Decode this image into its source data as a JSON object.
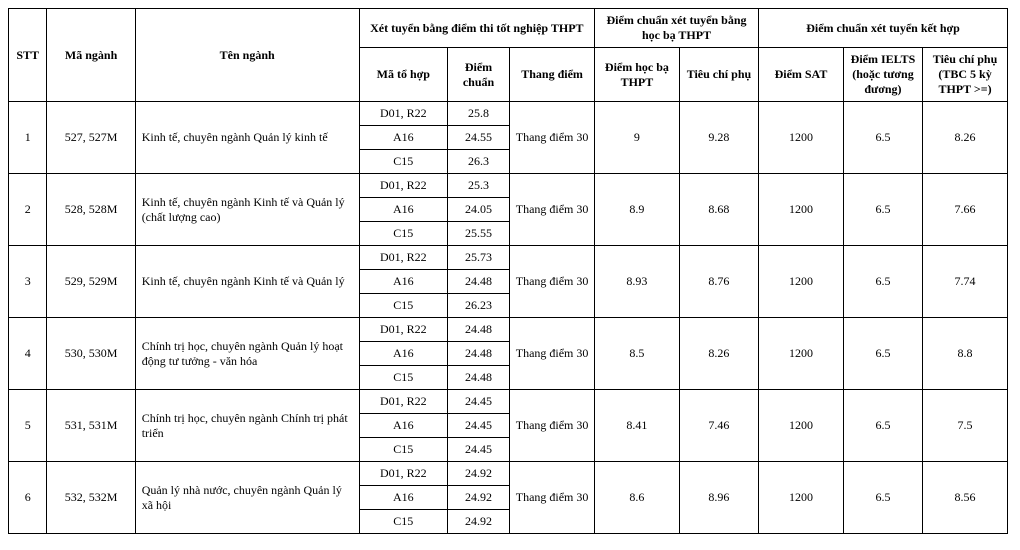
{
  "headers": {
    "stt": "STT",
    "ma_nganh": "Mã ngành",
    "ten_nganh": "Tên ngành",
    "group_thpt": "Xét tuyển bằng điểm thi tốt nghiệp THPT",
    "ma_to_hop": "Mã tổ hợp",
    "diem_chuan": "Điểm chuẩn",
    "thang_diem": "Thang điểm",
    "group_hocba": "Điểm chuẩn xét tuyển bằng học bạ THPT",
    "diem_hocba": "Điểm học bạ THPT",
    "tieu_chi_phu": "Tiêu chí phụ",
    "group_kethop": "Điểm chuẩn xét tuyển kết hợp",
    "diem_sat": "Điểm SAT",
    "diem_ielts": "Điểm IELTS (hoặc tương đương)",
    "tieu_chi_phu2": "Tiêu chí phụ (TBC 5 kỳ THPT >=)"
  },
  "rows": [
    {
      "stt": "1",
      "code": "527, 527M",
      "name": "Kinh tế, chuyên ngành Quản lý kinh tế",
      "sub": [
        {
          "tohop": "D01, R22",
          "dc": "25.8"
        },
        {
          "tohop": "A16",
          "dc": "24.55"
        },
        {
          "tohop": "C15",
          "dc": "26.3"
        }
      ],
      "thang": "Thang điểm 30",
      "hb": "9",
      "tcp1": "9.28",
      "sat": "1200",
      "ielts": "6.5",
      "tcp2": "8.26"
    },
    {
      "stt": "2",
      "code": "528, 528M",
      "name": "Kinh tế, chuyên ngành Kinh tế và Quản lý (chất lượng cao)",
      "sub": [
        {
          "tohop": "D01, R22",
          "dc": "25.3"
        },
        {
          "tohop": "A16",
          "dc": "24.05"
        },
        {
          "tohop": "C15",
          "dc": "25.55"
        }
      ],
      "thang": "Thang điểm 30",
      "hb": "8.9",
      "tcp1": "8.68",
      "sat": "1200",
      "ielts": "6.5",
      "tcp2": "7.66"
    },
    {
      "stt": "3",
      "code": "529, 529M",
      "name": "Kinh tế, chuyên ngành Kinh tế và Quản lý",
      "sub": [
        {
          "tohop": "D01, R22",
          "dc": "25.73"
        },
        {
          "tohop": "A16",
          "dc": "24.48"
        },
        {
          "tohop": "C15",
          "dc": "26.23"
        }
      ],
      "thang": "Thang điểm 30",
      "hb": "8.93",
      "tcp1": "8.76",
      "sat": "1200",
      "ielts": "6.5",
      "tcp2": "7.74"
    },
    {
      "stt": "4",
      "code": "530, 530M",
      "name": "Chính trị học, chuyên ngành Quản lý hoạt động tư tưởng - văn hóa",
      "sub": [
        {
          "tohop": "D01, R22",
          "dc": "24.48"
        },
        {
          "tohop": "A16",
          "dc": "24.48"
        },
        {
          "tohop": "C15",
          "dc": "24.48"
        }
      ],
      "thang": "Thang điểm 30",
      "hb": "8.5",
      "tcp1": "8.26",
      "sat": "1200",
      "ielts": "6.5",
      "tcp2": "8.8"
    },
    {
      "stt": "5",
      "code": "531, 531M",
      "name": "Chính trị học, chuyên ngành Chính trị phát triển",
      "sub": [
        {
          "tohop": "D01, R22",
          "dc": "24.45"
        },
        {
          "tohop": "A16",
          "dc": "24.45"
        },
        {
          "tohop": "C15",
          "dc": "24.45"
        }
      ],
      "thang": "Thang điểm 30",
      "hb": "8.41",
      "tcp1": "7.46",
      "sat": "1200",
      "ielts": "6.5",
      "tcp2": "7.5"
    },
    {
      "stt": "6",
      "code": "532, 532M",
      "name": "Quản lý nhà nước, chuyên ngành Quản lý xã hội",
      "sub": [
        {
          "tohop": "D01, R22",
          "dc": "24.92"
        },
        {
          "tohop": "A16",
          "dc": "24.92"
        },
        {
          "tohop": "C15",
          "dc": "24.92"
        }
      ],
      "thang": "Thang điểm 30",
      "hb": "8.6",
      "tcp1": "8.96",
      "sat": "1200",
      "ielts": "6.5",
      "tcp2": "8.56"
    }
  ]
}
